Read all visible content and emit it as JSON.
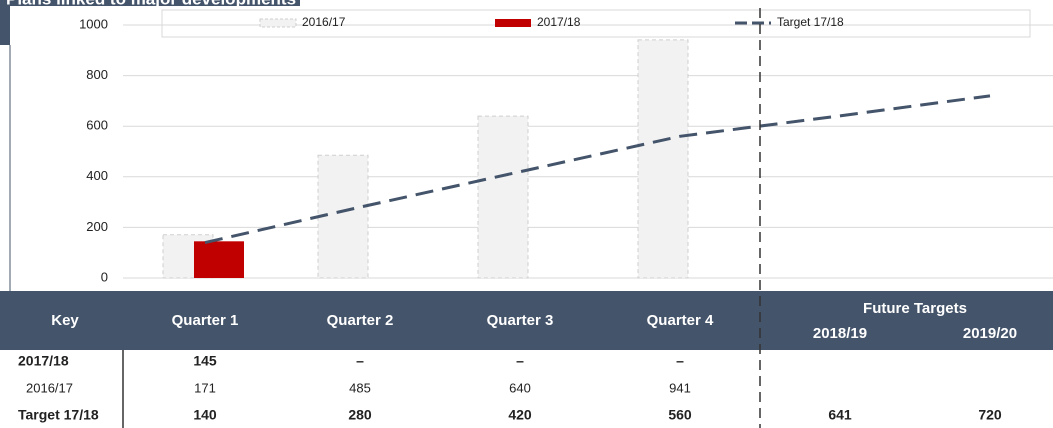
{
  "chart_data": {
    "type": "bar-line",
    "title": "Plans linked to major developments",
    "categories": [
      "Quarter 1",
      "Quarter 2",
      "Quarter 3",
      "Quarter 4",
      "2018/19",
      "2019/20"
    ],
    "table_header": {
      "key": "Key",
      "future": "Future Targets"
    },
    "series": [
      {
        "name": "2016/17",
        "kind": "bar",
        "color": "#f2f2f2",
        "values": [
          171,
          485,
          640,
          941,
          null,
          null
        ]
      },
      {
        "name": "2017/18",
        "kind": "bar",
        "color": "#c00000",
        "values": [
          145,
          null,
          null,
          null,
          null,
          null
        ],
        "value_labels": [
          "145",
          "–",
          "–",
          "–",
          null,
          null
        ]
      },
      {
        "name": "Target 17/18",
        "kind": "line",
        "color": "#44546a",
        "values": [
          140,
          280,
          420,
          560,
          641,
          720
        ]
      }
    ],
    "ylim": [
      0,
      1000
    ],
    "yticks": [
      0,
      200,
      400,
      600,
      800,
      1000
    ],
    "grid": true,
    "legend": "top"
  }
}
